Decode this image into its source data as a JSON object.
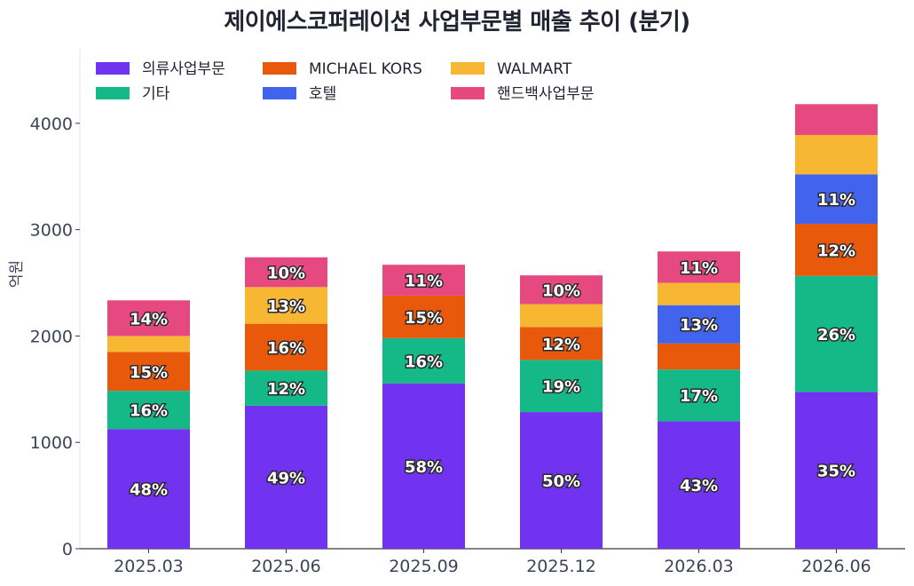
{
  "chart_data": {
    "type": "bar",
    "stacked": true,
    "title": "제이에스코퍼레이션 사업부문별 매출 추이 (분기)",
    "xlabel": "",
    "ylabel": "억원",
    "ylim": [
      0,
      4700
    ],
    "yticks": [
      0,
      1000,
      2000,
      3000,
      4000
    ],
    "grid": false,
    "legend_position": "top-left",
    "categories": [
      "2025.03",
      "2025.06",
      "2025.09",
      "2025.12",
      "2026.03",
      "2026.06"
    ],
    "series": [
      {
        "name": "의류사업부문",
        "color": "#7133f0",
        "values": [
          1125,
          1345,
          1555,
          1285,
          1200,
          1475
        ],
        "labels": [
          "48%",
          "49%",
          "58%",
          "50%",
          "43%",
          "35%"
        ]
      },
      {
        "name": "기타",
        "color": "#14b987",
        "values": [
          360,
          330,
          425,
          490,
          485,
          1090
        ],
        "labels": [
          "16%",
          "12%",
          "16%",
          "19%",
          "17%",
          "26%"
        ]
      },
      {
        "name": "MICHAEL KORS",
        "color": "#e8590c",
        "values": [
          365,
          440,
          400,
          310,
          245,
          490
        ],
        "labels": [
          "15%",
          "16%",
          "15%",
          "12%",
          "",
          "12%"
        ]
      },
      {
        "name": "호텔",
        "color": "#4263eb",
        "values": [
          0,
          0,
          0,
          0,
          360,
          465
        ],
        "labels": [
          "",
          "",
          "",
          "",
          "13%",
          "11%"
        ]
      },
      {
        "name": "WALMART",
        "color": "#f7b733",
        "values": [
          150,
          345,
          0,
          215,
          210,
          370
        ],
        "labels": [
          "",
          "13%",
          "",
          "",
          "",
          ""
        ]
      },
      {
        "name": "핸드백사업부문",
        "color": "#e64980",
        "values": [
          335,
          280,
          290,
          270,
          295,
          290
        ],
        "labels": [
          "14%",
          "10%",
          "11%",
          "10%",
          "11%",
          ""
        ]
      }
    ]
  }
}
